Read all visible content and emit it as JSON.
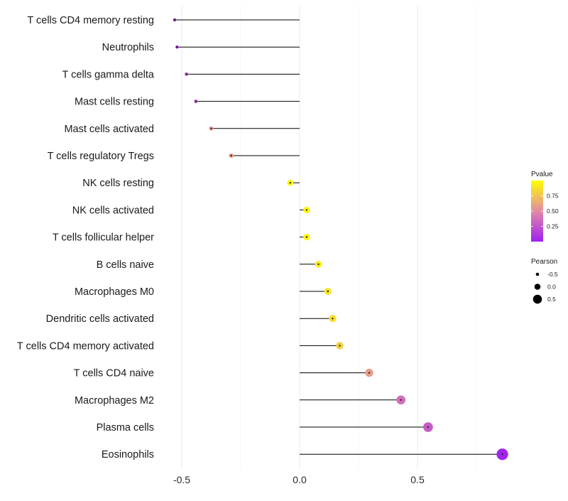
{
  "chart_data": {
    "type": "lollipop",
    "title": "",
    "xlabel": "",
    "ylabel": "",
    "xlim": [
      -0.55,
      0.9
    ],
    "x_ticks": [
      -0.5,
      0.0,
      0.5
    ],
    "x_tick_labels": [
      "-0.5",
      "0.0",
      "0.5"
    ],
    "grid": true,
    "categories": [
      "T cells CD4 memory resting",
      "Neutrophils",
      "T cells gamma delta",
      "Mast cells resting",
      "Mast cells activated",
      "T cells regulatory  Tregs",
      "NK cells resting",
      "NK cells activated",
      "T cells follicular helper",
      "B cells naive",
      "Macrophages M0",
      "Dendritic cells activated",
      "T cells CD4 memory activated",
      "T cells CD4 naive",
      "Macrophages M2",
      "Plasma cells",
      "Eosinophils"
    ],
    "pearson": [
      -0.53,
      -0.52,
      -0.48,
      -0.44,
      -0.375,
      -0.29,
      -0.04,
      0.03,
      0.03,
      0.08,
      0.12,
      0.14,
      0.17,
      0.295,
      0.43,
      0.545,
      0.86
    ],
    "pvalue": [
      0.05,
      0.08,
      0.22,
      0.3,
      0.55,
      0.6,
      0.98,
      0.97,
      0.96,
      0.92,
      0.88,
      0.86,
      0.8,
      0.58,
      0.37,
      0.28,
      0.02
    ],
    "legend": {
      "color": {
        "title": "Pvalue",
        "ticks": [
          0.25,
          0.5,
          0.75
        ],
        "tick_labels": [
          "0.25",
          "0.50",
          "0.75"
        ],
        "range": [
          0.0,
          1.0
        ],
        "low_color": "#a020f0",
        "mid_color": "#e28aa6",
        "high_color": "#ffff00"
      },
      "size": {
        "title": "Pearson",
        "values": [
          -0.5,
          0.0,
          0.5
        ],
        "labels": [
          "-0.5",
          "0.0",
          "0.5"
        ]
      },
      "placement": "right"
    }
  }
}
